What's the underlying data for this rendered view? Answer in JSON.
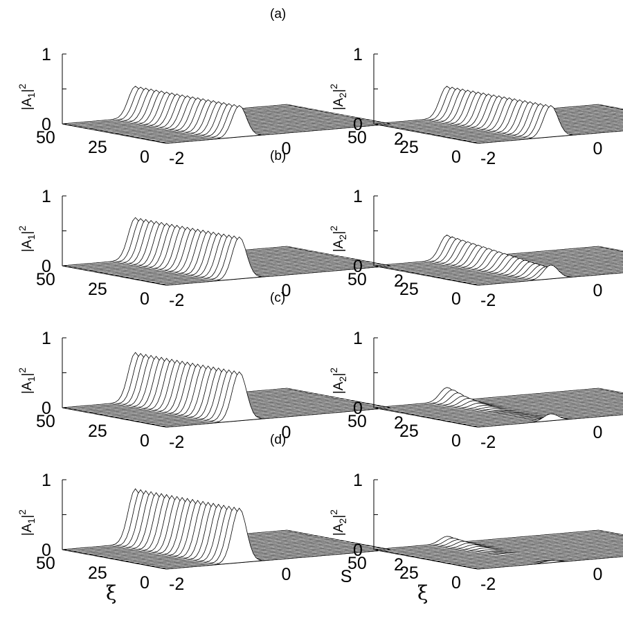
{
  "chart_data": [
    {
      "type": "surface",
      "panel": "(a)",
      "ylabel": "|A1|^2",
      "xi_ticks": [
        "50",
        "25",
        "0"
      ],
      "s_ticks": [
        "-2",
        "0",
        "2"
      ],
      "z_ticks": [
        "0",
        "1"
      ],
      "zlim": [
        0,
        1
      ],
      "s_range": [
        -2,
        2
      ],
      "xi_range": [
        0,
        50
      ],
      "peak_s": -0.7,
      "pulse_width": 0.18,
      "peak_values": [
        0.45,
        0.45,
        0.45,
        0.45,
        0.45,
        0.45,
        0.45,
        0.45,
        0.45,
        0.45,
        0.45,
        0.45,
        0.45,
        0.45,
        0.45,
        0.45,
        0.45,
        0.45,
        0.45,
        0.45,
        0.45
      ]
    },
    {
      "type": "surface",
      "panel": "",
      "ylabel": "|A2|^2",
      "xi_ticks": [
        "50",
        "25",
        "0"
      ],
      "s_ticks": [
        "-2",
        "0",
        "2"
      ],
      "z_ticks": [
        "0",
        "1"
      ],
      "zlim": [
        0,
        1
      ],
      "s_range": [
        -2,
        2
      ],
      "xi_range": [
        0,
        50
      ],
      "peak_s": -0.7,
      "pulse_width": 0.18,
      "peak_values": [
        0.45,
        0.45,
        0.45,
        0.45,
        0.45,
        0.45,
        0.45,
        0.45,
        0.45,
        0.45,
        0.45,
        0.45,
        0.45,
        0.45,
        0.45,
        0.45,
        0.45,
        0.45,
        0.45,
        0.45,
        0.45
      ]
    },
    {
      "type": "surface",
      "panel": "(b)",
      "ylabel": "|A1|^2",
      "xi_ticks": [
        "50",
        "25",
        "0"
      ],
      "s_ticks": [
        "-2",
        "0",
        "2"
      ],
      "z_ticks": [
        "0",
        "1"
      ],
      "zlim": [
        0,
        1
      ],
      "s_range": [
        -2,
        2
      ],
      "xi_range": [
        0,
        50
      ],
      "peak_s": -0.7,
      "pulse_width": 0.18,
      "peak_values": [
        0.6,
        0.6,
        0.6,
        0.6,
        0.6,
        0.6,
        0.6,
        0.6,
        0.6,
        0.6,
        0.6,
        0.6,
        0.6,
        0.6,
        0.6,
        0.6,
        0.6,
        0.6,
        0.6,
        0.6,
        0.6
      ]
    },
    {
      "type": "surface",
      "panel": "",
      "ylabel": "|A2|^2",
      "xi_ticks": [
        "50",
        "25",
        "0"
      ],
      "s_ticks": [
        "-2",
        "0",
        "2"
      ],
      "z_ticks": [
        "0",
        "1"
      ],
      "zlim": [
        0,
        1
      ],
      "s_range": [
        -2,
        2
      ],
      "xi_range": [
        0,
        50
      ],
      "peak_s": -0.7,
      "pulse_width": 0.18,
      "peak_values": [
        0.35,
        0.34,
        0.33,
        0.32,
        0.31,
        0.3,
        0.29,
        0.28,
        0.27,
        0.26,
        0.25,
        0.24,
        0.23,
        0.22,
        0.21,
        0.2,
        0.19,
        0.18,
        0.17,
        0.16,
        0.2
      ]
    },
    {
      "type": "surface",
      "panel": "(c)",
      "ylabel": "|A1|^2",
      "xi_ticks": [
        "50",
        "25",
        "0"
      ],
      "s_ticks": [
        "-2",
        "0",
        "2"
      ],
      "z_ticks": [
        "0",
        "1"
      ],
      "zlim": [
        0,
        1
      ],
      "s_range": [
        -2,
        2
      ],
      "xi_range": [
        0,
        50
      ],
      "peak_s": -0.7,
      "pulse_width": 0.18,
      "peak_values": [
        0.7,
        0.7,
        0.7,
        0.7,
        0.7,
        0.7,
        0.7,
        0.7,
        0.7,
        0.7,
        0.7,
        0.7,
        0.7,
        0.7,
        0.7,
        0.7,
        0.7,
        0.7,
        0.7,
        0.7,
        0.7
      ]
    },
    {
      "type": "surface",
      "panel": "",
      "ylabel": "|A2|^2",
      "xi_ticks": [
        "50",
        "25",
        "0"
      ],
      "s_ticks": [
        "-2",
        "0",
        "2"
      ],
      "z_ticks": [
        "0",
        "1"
      ],
      "zlim": [
        0,
        1
      ],
      "s_range": [
        -2,
        2
      ],
      "xi_range": [
        0,
        50
      ],
      "peak_s": -0.7,
      "pulse_width": 0.18,
      "peak_values": [
        0.2,
        0.18,
        0.15,
        0.12,
        0.1,
        0.08,
        0.06,
        0.04,
        0.03,
        0.02,
        0.01,
        0.01,
        0.01,
        0.01,
        0.01,
        0.01,
        0.01,
        0.01,
        0.01,
        0.03,
        0.1
      ]
    },
    {
      "type": "surface",
      "panel": "(d)",
      "ylabel": "|A1|^2",
      "xlabel": "ξ",
      "slabel": "S",
      "xi_ticks": [
        "50",
        "25",
        "0"
      ],
      "s_ticks": [
        "-2",
        "0",
        "2"
      ],
      "z_ticks": [
        "0",
        "1"
      ],
      "zlim": [
        0,
        1
      ],
      "s_range": [
        -2,
        2
      ],
      "xi_range": [
        0,
        50
      ],
      "peak_s": -0.7,
      "pulse_width": 0.18,
      "peak_values": [
        0.78,
        0.78,
        0.78,
        0.78,
        0.78,
        0.78,
        0.78,
        0.78,
        0.78,
        0.78,
        0.78,
        0.78,
        0.78,
        0.78,
        0.78,
        0.78,
        0.78,
        0.78,
        0.78,
        0.78,
        0.78
      ]
    },
    {
      "type": "surface",
      "panel": "",
      "ylabel": "|A2|^2",
      "xlabel": "ξ",
      "slabel": "S",
      "xi_ticks": [
        "50",
        "25",
        "0"
      ],
      "s_ticks": [
        "-2",
        "0",
        "2"
      ],
      "z_ticks": [
        "0",
        "1"
      ],
      "zlim": [
        0,
        1
      ],
      "s_range": [
        -2,
        2
      ],
      "xi_range": [
        0,
        50
      ],
      "peak_s": -0.7,
      "pulse_width": 0.18,
      "peak_values": [
        0.1,
        0.09,
        0.08,
        0.07,
        0.06,
        0.05,
        0.04,
        0.03,
        0.02,
        0.01,
        0.01,
        0.01,
        0.0,
        0.0,
        0.0,
        0.0,
        0.0,
        0.0,
        0.0,
        0.01,
        0.03
      ]
    }
  ]
}
